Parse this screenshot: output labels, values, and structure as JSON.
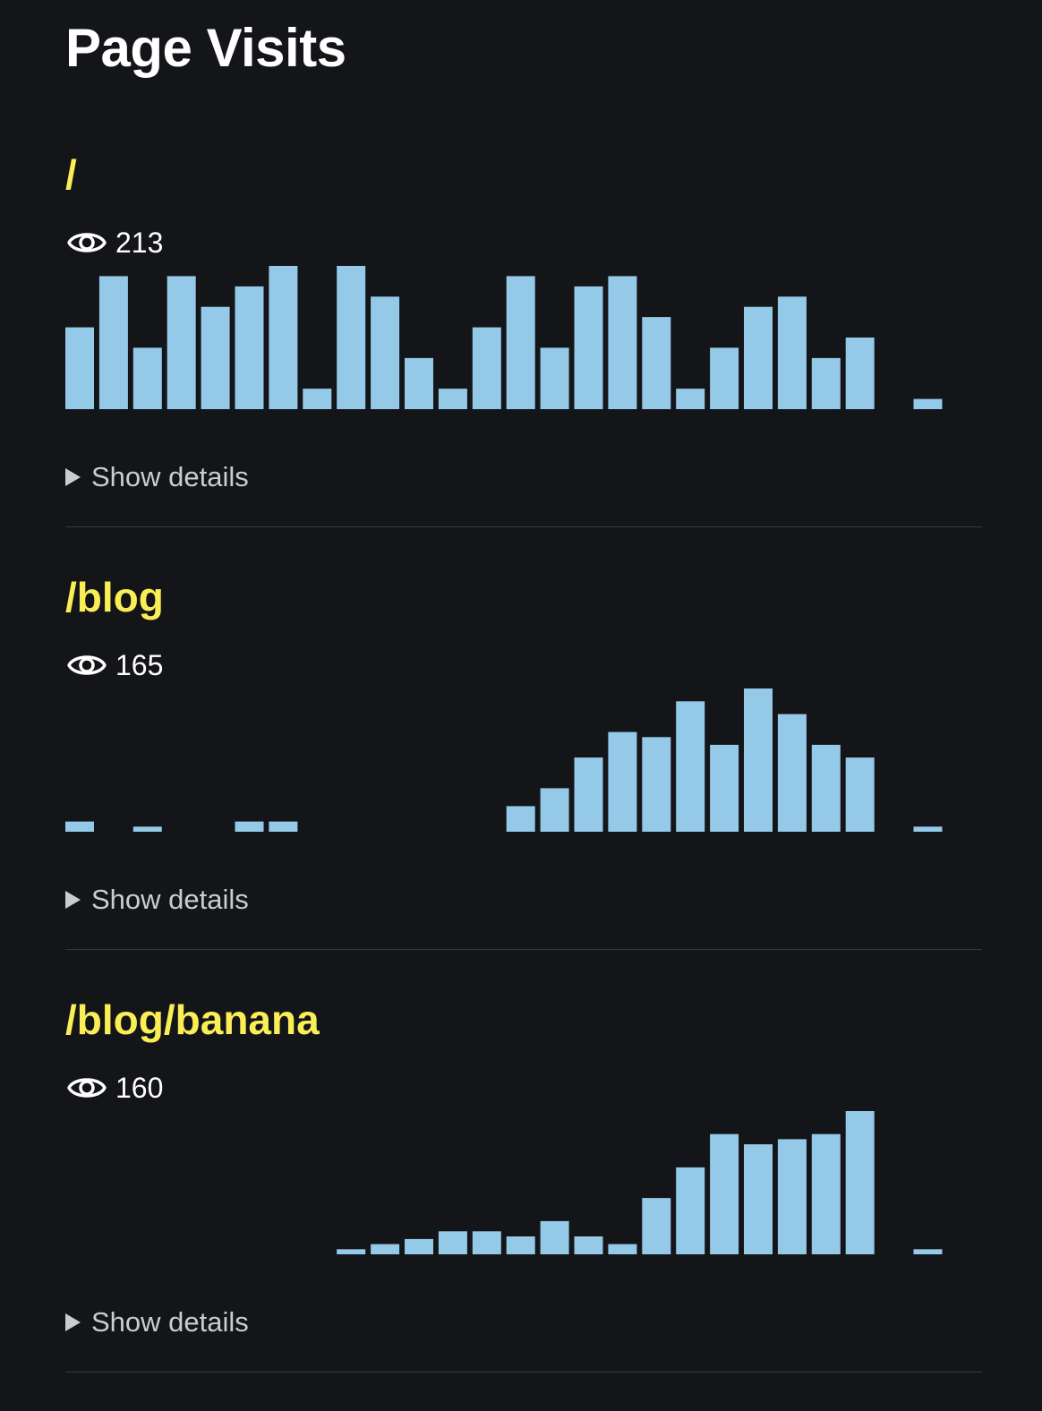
{
  "page": {
    "title": "Page Visits"
  },
  "colors": {
    "background": "#131518",
    "title": "#ffffff",
    "path": "#f9ee55",
    "bar": "#95c9e8",
    "details": "#c9cdd2",
    "divider": "#34383d"
  },
  "sections": [
    {
      "path": "/",
      "visits": "213",
      "details_label": "Show details",
      "chart_data": {
        "type": "bar",
        "max": 14,
        "values": [
          8,
          13,
          6,
          13,
          10,
          12,
          14,
          2,
          14,
          11,
          5,
          2,
          8,
          13,
          6,
          12,
          13,
          9,
          2,
          6,
          10,
          11,
          5,
          7,
          0,
          1
        ]
      }
    },
    {
      "path": "/blog",
      "visits": "165",
      "details_label": "Show details",
      "chart_data": {
        "type": "bar",
        "max": 14,
        "values": [
          1,
          0,
          0.5,
          0,
          0,
          1,
          1,
          0,
          0,
          0,
          0,
          0,
          0,
          2.5,
          4.25,
          7.25,
          9.75,
          9.25,
          12.75,
          8.5,
          14,
          11.5,
          8.5,
          7.25,
          0,
          0.5
        ]
      }
    },
    {
      "path": "/blog/banana",
      "visits": "160",
      "details_label": "Show details",
      "chart_data": {
        "type": "bar",
        "max": 14,
        "values": [
          0,
          0,
          0,
          0,
          0,
          0,
          0,
          0,
          0.5,
          1,
          1.5,
          2.25,
          2.25,
          1.75,
          3.25,
          1.75,
          1,
          5.5,
          8.5,
          11.75,
          10.75,
          11.25,
          11.75,
          14,
          0,
          0.5
        ]
      }
    }
  ]
}
